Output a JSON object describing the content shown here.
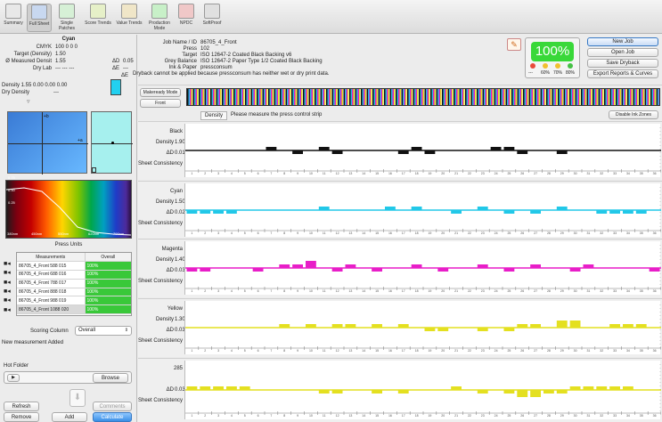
{
  "toolbar": {
    "items": [
      {
        "label": "Summary"
      },
      {
        "label": "Full Sheet"
      },
      {
        "label": "Single Patches"
      },
      {
        "label": "Score Trends"
      },
      {
        "label": "Value Trends"
      },
      {
        "label": "Production Mode"
      },
      {
        "label": "NPDC"
      },
      {
        "label": "SoftProof"
      }
    ]
  },
  "left": {
    "patch_title": "Cyan",
    "cmyk_label": "CMYK",
    "cmyk_values": "100   0   0   0",
    "target_density_label": "Target (Density)",
    "target_density_value": "1.50",
    "measured_label": "Ø Measured Densit",
    "measured_value": "1.55",
    "delta_d_label": "ΔD",
    "delta_d_value": "0.05",
    "dry_lab_label": "Dry Lab",
    "dry_lab_values": "---        ---        ---",
    "delta_e_label": "ΔE",
    "delta_e_value": "---",
    "delta_e2_label": "ΔE",
    "density_line": "Density  1.55 0.00 0.00 0.00",
    "dry_density_label": "Dry Density",
    "dry_density_value": "---",
    "spectrum_y": [
      "0.75",
      "0.50",
      "0.25"
    ],
    "spectrum_x": [
      "380nm",
      "450nm",
      "550nm",
      "620nm",
      "700nm"
    ],
    "press_units_label": "Press Units",
    "table_headers": [
      "Measurements",
      "Overall"
    ],
    "measurements": [
      {
        "name": "86705_4_Front 588 015",
        "overall": "100%"
      },
      {
        "name": "86705_4_Front 688 016",
        "overall": "100%"
      },
      {
        "name": "86705_4_Front 788 017",
        "overall": "100%"
      },
      {
        "name": "86705_4_Front 888 018",
        "overall": "100%"
      },
      {
        "name": "86705_4_Front 988 019",
        "overall": "100%"
      },
      {
        "name": "86705_4_Front 1088 020",
        "overall": "100%"
      }
    ],
    "scoring_column_label": "Scoring Column",
    "scoring_column_value": "Overall",
    "status_message": "New measurement Added",
    "hot_folder_label": "Hot Folder",
    "play_glyph": "▶",
    "browse_label": "Browse",
    "refresh_label": "Refresh",
    "comments_label": "Comments",
    "remove_label": "Remove",
    "add_label": "Add",
    "calculate_label": "Calculate"
  },
  "header": {
    "job_label": "Job Name / ID",
    "job_value": "86705_4_Front",
    "press_label": "Press",
    "press_value": "102",
    "target_label": "Target",
    "target_value": "ISO 12647-2 Coated Black Backing v6",
    "grey_label": "Grey Balance",
    "grey_value": "ISO 12647-2 Paper Type 1/2 Coated Black Backing",
    "ink_label": "Ink & Paper",
    "ink_value": "pressconsum",
    "warning": "Dryback cannot be applied because pressconsum has neither wet or dry print data.",
    "score": "100%",
    "lights": [
      {
        "label": "---",
        "color": "#e84a3a"
      },
      {
        "label": "60%",
        "color": "#f0c030"
      },
      {
        "label": "70%",
        "color": "#f0c030"
      },
      {
        "label": "80%",
        "color": "#46c046"
      }
    ],
    "buttons": [
      "New Job",
      "Open Job",
      "Save Dryback",
      "Export Reports & Curves"
    ]
  },
  "strip": {
    "mode_label": "Makeready Mode",
    "side_label": "Front",
    "density_tab": "Density",
    "message": "Please measure the press control strip",
    "disable_btn": "Disable Ink Zones"
  },
  "zones": [
    "1",
    "2",
    "3",
    "4",
    "5",
    "6",
    "7",
    "8",
    "9",
    "10",
    "11",
    "12",
    "13",
    "14",
    "15",
    "16",
    "17",
    "18",
    "19",
    "20",
    "21",
    "22",
    "23",
    "24",
    "25",
    "26",
    "27",
    "28",
    "29",
    "30",
    "31",
    "32",
    "33",
    "34",
    "35",
    "36"
  ],
  "sheet_consistency_label": "Sheet Consistency",
  "density_label_text": "Density",
  "delta_label_text": "ΔD",
  "colors": [
    {
      "name": "Black",
      "density": "1.90",
      "delta": "0.01",
      "color": "#111111",
      "zone_vals": [
        0,
        0,
        0,
        0,
        0,
        0,
        1,
        0,
        -1,
        0,
        1,
        -1,
        0,
        0,
        0,
        0,
        -1,
        1,
        -1,
        0,
        0,
        0,
        0,
        1,
        1,
        -1,
        0,
        0,
        -1,
        0,
        0,
        0,
        0,
        0,
        0,
        0
      ]
    },
    {
      "name": "Cyan",
      "density": "1.50",
      "delta": "0.02",
      "color": "#22c8e8",
      "zone_vals": [
        -1,
        -1,
        -1,
        -1,
        0,
        0,
        0,
        0,
        0,
        0,
        1,
        0,
        0,
        0,
        0,
        1,
        0,
        1,
        0,
        0,
        -1,
        0,
        1,
        0,
        -1,
        0,
        -1,
        0,
        1,
        0,
        0,
        -1,
        -1,
        -1,
        -1,
        0
      ]
    },
    {
      "name": "Magenta",
      "density": "1.40",
      "delta": "0.03",
      "color": "#e81ec8",
      "zone_vals": [
        -1,
        -1,
        0,
        0,
        0,
        -1,
        0,
        1,
        1,
        2,
        0,
        -1,
        1,
        0,
        -1,
        0,
        0,
        1,
        0,
        -1,
        0,
        0,
        1,
        0,
        -1,
        0,
        1,
        0,
        0,
        -1,
        1,
        0,
        0,
        0,
        0,
        -1
      ]
    },
    {
      "name": "Yellow",
      "density": "1.30",
      "delta": "0.03",
      "color": "#e4e020",
      "zone_vals": [
        0,
        0,
        0,
        0,
        0,
        0,
        0,
        1,
        0,
        1,
        0,
        1,
        1,
        0,
        1,
        0,
        1,
        0,
        -1,
        -1,
        0,
        0,
        -1,
        0,
        -1,
        1,
        1,
        0,
        2,
        2,
        0,
        0,
        1,
        1,
        1,
        0
      ]
    },
    {
      "name": "285",
      "density": "",
      "delta": "0.03",
      "color": "#e4e020",
      "zone_vals": [
        1,
        1,
        1,
        1,
        1,
        0,
        0,
        0,
        0,
        0,
        -1,
        -1,
        0,
        0,
        -1,
        0,
        -1,
        0,
        0,
        0,
        1,
        0,
        -1,
        0,
        -1,
        -2,
        -2,
        -1,
        -1,
        1,
        1,
        1,
        1,
        1,
        0,
        0
      ]
    }
  ]
}
